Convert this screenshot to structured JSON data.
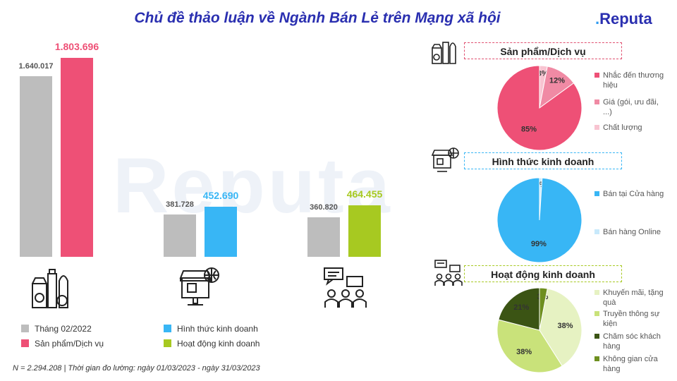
{
  "title": "Chủ đề thảo luận về Ngành Bán Lẻ trên Mạng xã hội",
  "logo": {
    "name": "Reputa"
  },
  "watermark": "Reputa",
  "footer": "N = 2.294.208 | Thời gian đo lường: ngày 01/03/2023 - ngày 31/03/2023",
  "chart_data": [
    {
      "type": "bar",
      "categories": [
        "Sản phẩm/Dịch vụ",
        "Hình thức kinh doanh",
        "Hoạt động kinh doanh"
      ],
      "series": [
        {
          "name": "Tháng 02/2022",
          "values": [
            1640017,
            381728,
            360820
          ],
          "color": "#bdbdbd"
        },
        {
          "name": "Sản phẩm/Dịch vụ",
          "values": [
            1803696,
            null,
            null
          ],
          "color": "#ee5076"
        },
        {
          "name": "Hình thức kinh doanh",
          "values": [
            null,
            452690,
            null
          ],
          "color": "#38b6f5"
        },
        {
          "name": "Hoạt động kinh doanh",
          "values": [
            null,
            null,
            464455
          ],
          "color": "#a7c921"
        }
      ],
      "value_labels": {
        "prev": [
          "1.640.017",
          "381.728",
          "360.820"
        ],
        "curr": [
          "1.803.696",
          "452.690",
          "464.455"
        ]
      },
      "ylim": [
        0,
        1803696
      ],
      "legend": [
        "Tháng 02/2022",
        "Hình thức kinh doanh",
        "Sản phẩm/Dịch vụ",
        "Hoạt động kinh doanh"
      ]
    },
    {
      "type": "pie",
      "title": "Sản phẩm/Dịch vụ",
      "border_color": "#e05070",
      "slices": [
        {
          "label": "Nhắc đến thương hiệu",
          "value": 85,
          "text": "85%",
          "color": "#ee5076"
        },
        {
          "label": "Giá (gói, ưu đãi, ...)",
          "value": 12,
          "text": "12%",
          "color": "#f08aa4"
        },
        {
          "label": "Chất lượng",
          "value": 3,
          "text": "3%",
          "color": "#f8c4d1"
        }
      ]
    },
    {
      "type": "pie",
      "title": "Hình thức kinh doanh",
      "border_color": "#38b6f5",
      "slices": [
        {
          "label": "Bán tại Cửa hàng",
          "value": 99,
          "text": "99%",
          "color": "#38b6f5"
        },
        {
          "label": "Bán hàng Online",
          "value": 1,
          "text": "1%",
          "color": "#c8e9fb"
        }
      ]
    },
    {
      "type": "pie",
      "title": "Hoạt động kinh doanh",
      "border_color": "#a7c921",
      "slices": [
        {
          "label": "Khuyến mãi, tặng quà",
          "value": 38,
          "text": "38%",
          "color": "#e6f2c2"
        },
        {
          "label": "Truyền thông sự kiện",
          "value": 38,
          "text": "38%",
          "color": "#c9e27a"
        },
        {
          "label": "Chăm sóc khách hàng",
          "value": 21,
          "text": "21%",
          "color": "#3b5414"
        },
        {
          "label": "Không gian cửa hàng",
          "value": 3,
          "text": "3%",
          "color": "#6e8f1f"
        }
      ]
    }
  ]
}
